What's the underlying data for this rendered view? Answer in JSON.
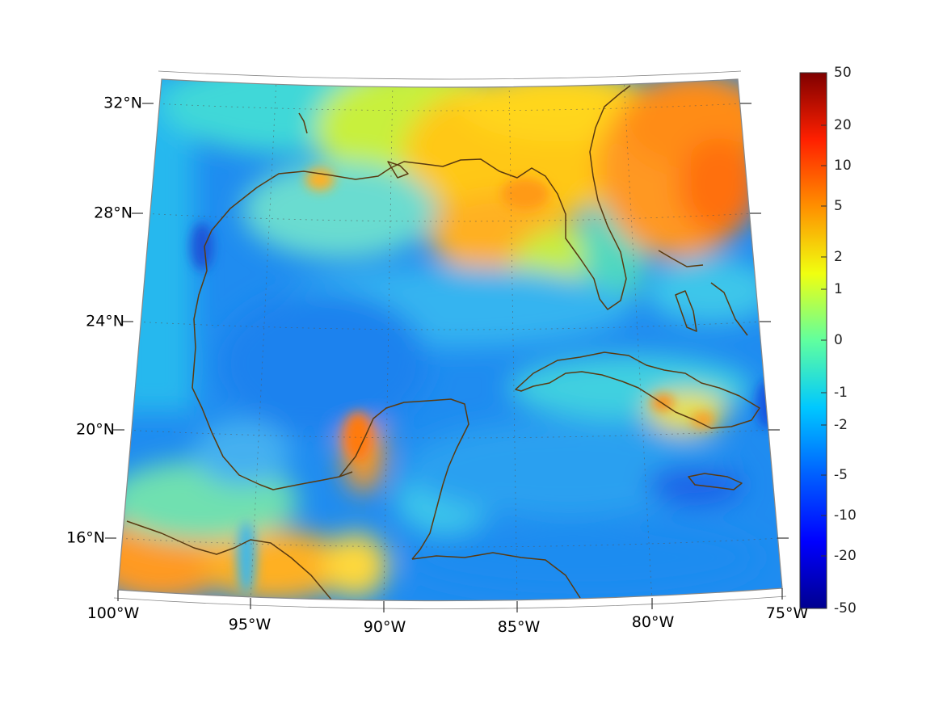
{
  "map": {
    "projection": "conic",
    "lon_labels": [
      "100°W",
      "95°W",
      "90°W",
      "85°W",
      "80°W",
      "75°W"
    ],
    "lat_labels": [
      "32°N",
      "28°N",
      "24°N",
      "20°N",
      "16°N"
    ],
    "coastline_color": "#5a3a10",
    "graticule": true
  },
  "colorbar": {
    "colormap": "jet",
    "scale": "symmetric-log",
    "ticks": [
      "50",
      "20",
      "10",
      "5",
      "2",
      "1",
      "0",
      "-1",
      "-2",
      "-5",
      "-10",
      "-20",
      "-50"
    ]
  }
}
